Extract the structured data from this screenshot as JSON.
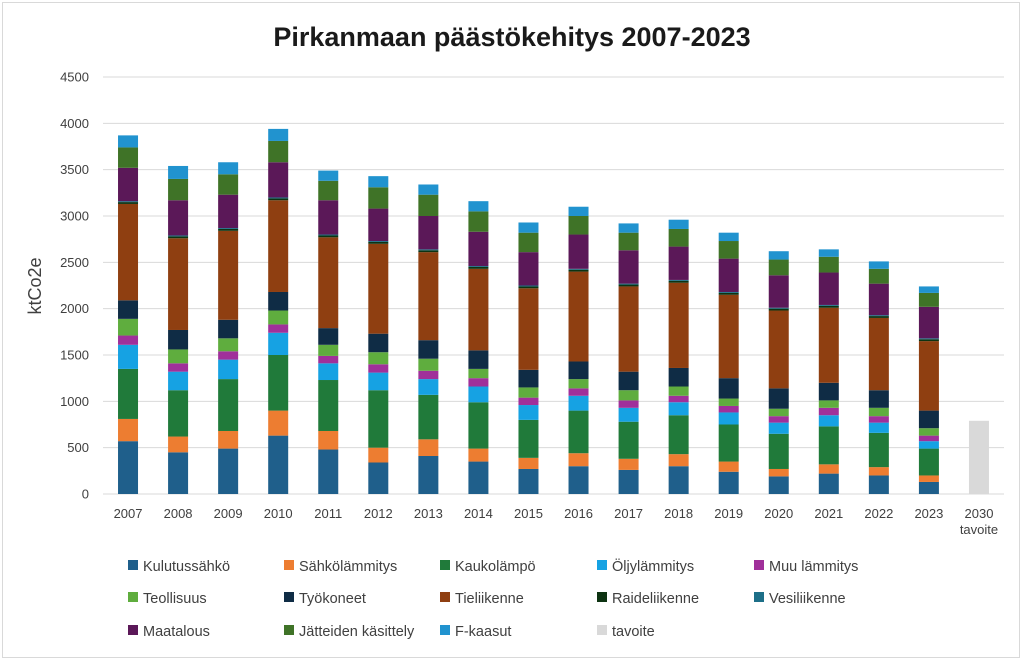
{
  "chart_data": {
    "type": "bar",
    "stacked": true,
    "title": "Pirkanmaan päästökehitys 2007-2023",
    "ylabel": "ktCo2e",
    "xlabel": "",
    "ylim": [
      0,
      4500
    ],
    "yticks": [
      0,
      500,
      1000,
      1500,
      2000,
      2500,
      3000,
      3500,
      4000,
      4500
    ],
    "grid": true,
    "legend_position": "bottom",
    "categories": [
      [
        "2007"
      ],
      [
        "2008"
      ],
      [
        "2009"
      ],
      [
        "2010"
      ],
      [
        "2011"
      ],
      [
        "2012"
      ],
      [
        "2013"
      ],
      [
        "2014"
      ],
      [
        "2015"
      ],
      [
        "2016"
      ],
      [
        "2017"
      ],
      [
        "2018"
      ],
      [
        "2019"
      ],
      [
        "2020"
      ],
      [
        "2021"
      ],
      [
        "2022"
      ],
      [
        "2023"
      ],
      [
        "2030",
        "tavoite"
      ]
    ],
    "series": [
      {
        "name": "Kulutussähkö",
        "color": "#1f5f8b",
        "values": [
          570,
          450,
          490,
          630,
          480,
          340,
          410,
          350,
          270,
          300,
          260,
          300,
          240,
          190,
          220,
          200,
          130,
          0
        ]
      },
      {
        "name": "Sähkölämmitys",
        "color": "#ed7d31",
        "values": [
          240,
          170,
          190,
          270,
          200,
          160,
          180,
          140,
          120,
          140,
          120,
          130,
          110,
          80,
          100,
          90,
          70,
          0
        ]
      },
      {
        "name": "Kaukolämpö",
        "color": "#207a3a",
        "values": [
          540,
          500,
          560,
          600,
          550,
          620,
          480,
          500,
          410,
          460,
          400,
          420,
          400,
          380,
          410,
          370,
          290,
          0
        ]
      },
      {
        "name": "Öljylämmitys",
        "color": "#16a2e3",
        "values": [
          260,
          200,
          210,
          240,
          180,
          190,
          170,
          170,
          160,
          160,
          150,
          140,
          130,
          120,
          120,
          110,
          80,
          0
        ]
      },
      {
        "name": "Muu lämmitys",
        "color": "#a0309a",
        "values": [
          100,
          90,
          90,
          90,
          80,
          90,
          90,
          90,
          80,
          80,
          80,
          70,
          70,
          70,
          80,
          70,
          60,
          0
        ]
      },
      {
        "name": "Teollisuus",
        "color": "#5fad3e",
        "values": [
          180,
          150,
          140,
          150,
          120,
          130,
          130,
          100,
          110,
          100,
          110,
          100,
          80,
          80,
          80,
          90,
          80,
          0
        ]
      },
      {
        "name": "Työkoneet",
        "color": "#0f2c45",
        "values": [
          200,
          210,
          200,
          200,
          180,
          200,
          200,
          200,
          190,
          190,
          200,
          200,
          220,
          220,
          190,
          190,
          190,
          0
        ]
      },
      {
        "name": "Tieliikenne",
        "color": "#8f3f11",
        "values": [
          1040,
          990,
          960,
          990,
          980,
          970,
          950,
          880,
          880,
          970,
          920,
          920,
          900,
          840,
          810,
          780,
          750,
          0
        ]
      },
      {
        "name": "Raideliikenne",
        "color": "#0d3312",
        "values": [
          20,
          20,
          20,
          20,
          20,
          20,
          20,
          20,
          20,
          20,
          20,
          20,
          20,
          20,
          20,
          20,
          20,
          0
        ]
      },
      {
        "name": "Vesiliikenne",
        "color": "#1d6f88",
        "values": [
          10,
          10,
          10,
          10,
          10,
          10,
          10,
          10,
          10,
          10,
          10,
          10,
          10,
          10,
          10,
          10,
          10,
          0
        ]
      },
      {
        "name": "Maatalous",
        "color": "#5b1858",
        "values": [
          360,
          380,
          360,
          380,
          370,
          350,
          360,
          370,
          360,
          370,
          360,
          360,
          360,
          350,
          350,
          340,
          340,
          0
        ]
      },
      {
        "name": "Jätteiden käsittely",
        "color": "#3f7327",
        "values": [
          220,
          230,
          220,
          230,
          210,
          230,
          230,
          220,
          210,
          200,
          190,
          190,
          190,
          170,
          170,
          160,
          150,
          0
        ]
      },
      {
        "name": "F-kaasut",
        "color": "#2193cf",
        "values": [
          130,
          140,
          130,
          130,
          110,
          120,
          110,
          110,
          110,
          100,
          100,
          100,
          90,
          90,
          80,
          80,
          70,
          0
        ]
      },
      {
        "name": "tavoite",
        "color": "#d9d9d9",
        "values": [
          0,
          0,
          0,
          0,
          0,
          0,
          0,
          0,
          0,
          0,
          0,
          0,
          0,
          0,
          0,
          0,
          0,
          790
        ]
      }
    ]
  }
}
